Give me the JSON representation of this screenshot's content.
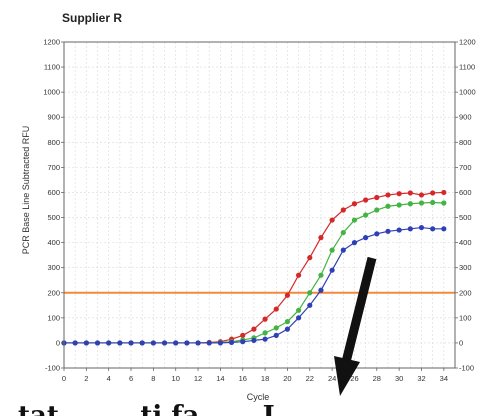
{
  "chart_data": {
    "type": "line",
    "title": "Supplier R",
    "xlabel": "Cycle",
    "ylabel": "PCR Base Line Subtracted RFU",
    "xlim": [
      0,
      35
    ],
    "ylim": [
      -100,
      1200
    ],
    "x_ticks": [
      0,
      2,
      4,
      6,
      8,
      10,
      12,
      14,
      16,
      18,
      20,
      22,
      24,
      26,
      28,
      30,
      32,
      34
    ],
    "y_ticks": [
      -100,
      0,
      100,
      200,
      300,
      400,
      500,
      600,
      700,
      800,
      900,
      1000,
      1100,
      1200
    ],
    "grid": true,
    "threshold": {
      "value": 200,
      "color": "#f08a3c"
    },
    "x": [
      0,
      1,
      2,
      3,
      4,
      5,
      6,
      7,
      8,
      9,
      10,
      11,
      12,
      13,
      14,
      15,
      16,
      17,
      18,
      19,
      20,
      21,
      22,
      23,
      24,
      25,
      26,
      27,
      28,
      29,
      30,
      31,
      32,
      33,
      34
    ],
    "series": [
      {
        "color": "#d62828",
        "values": [
          0,
          0,
          0,
          0,
          0,
          0,
          0,
          0,
          0,
          0,
          0,
          0,
          0,
          2,
          5,
          15,
          30,
          55,
          95,
          135,
          190,
          270,
          340,
          420,
          490,
          530,
          555,
          570,
          580,
          590,
          595,
          598,
          590,
          598,
          600
        ]
      },
      {
        "color": "#43b443",
        "values": [
          0,
          0,
          0,
          0,
          0,
          0,
          0,
          0,
          0,
          0,
          0,
          0,
          0,
          0,
          2,
          5,
          12,
          20,
          40,
          60,
          85,
          130,
          200,
          270,
          370,
          440,
          490,
          510,
          530,
          545,
          550,
          555,
          558,
          560,
          558
        ]
      },
      {
        "color": "#2f3fb5",
        "values": [
          0,
          0,
          0,
          0,
          0,
          0,
          0,
          0,
          0,
          0,
          0,
          0,
          0,
          0,
          0,
          2,
          5,
          10,
          15,
          30,
          55,
          100,
          150,
          210,
          290,
          370,
          400,
          420,
          435,
          445,
          450,
          455,
          460,
          455,
          455
        ]
      }
    ]
  },
  "overlay": {
    "bottom_text": "tat........ ti fa...... I..",
    "arrow": "black-down-arrow"
  }
}
